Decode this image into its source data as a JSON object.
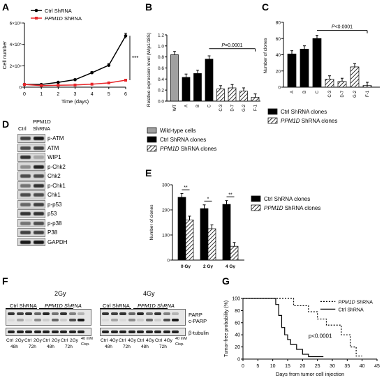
{
  "panels": {
    "A": "A",
    "B": "B",
    "C": "C",
    "D": "D",
    "E": "E",
    "F": "F",
    "G": "G"
  },
  "chart_data": [
    {
      "panel": "A",
      "type": "line",
      "xlabel": "Time (days)",
      "ylabel": "Cell number",
      "xlim": [
        0,
        6
      ],
      "ylim": [
        0,
        600000
      ],
      "x_ticks": [
        "0",
        "1",
        "2",
        "3",
        "4",
        "5",
        "6"
      ],
      "y_ticks": [
        "0",
        "2×10⁵",
        "4×10⁵",
        "6×10⁵"
      ],
      "x": [
        0,
        1,
        2,
        3,
        4,
        5,
        6
      ],
      "series": [
        {
          "name": "Ctrl ShRNA",
          "color": "#000000",
          "values": [
            25000,
            25000,
            45000,
            70000,
            135000,
            205000,
            480000
          ]
        },
        {
          "name": "PPM1D ShRNA",
          "color": "#e8262a",
          "values": [
            25000,
            15000,
            18000,
            20000,
            28000,
            40000,
            65000
          ]
        }
      ],
      "annotation": "***"
    },
    {
      "panel": "B",
      "type": "bar",
      "ylabel": "Relative expression level (Wip1/18S)",
      "ylim": [
        0,
        1.2
      ],
      "y_ticks": [
        "0.0",
        "0.2",
        "0.4",
        "0.6",
        "0.8",
        "1.0",
        "1.2"
      ],
      "categories": [
        "WT",
        "A",
        "B",
        "C",
        "C-3",
        "D-7",
        "G-2",
        "F-1"
      ],
      "values": [
        0.84,
        0.43,
        0.5,
        0.76,
        0.22,
        0.24,
        0.18,
        0.07
      ],
      "group": [
        "wt",
        "ctrl",
        "ctrl",
        "ctrl",
        "ppm",
        "ppm",
        "ppm",
        "ppm"
      ],
      "annotation": "P=0.0001",
      "legend": [
        "Wild-type cells",
        "Ctrl ShRNA clones",
        "PPM1D ShRNA clones"
      ]
    },
    {
      "panel": "C",
      "type": "bar",
      "ylabel": "Number of clones",
      "ylim": [
        0,
        80
      ],
      "y_ticks": [
        "0",
        "20",
        "40",
        "60",
        "80"
      ],
      "categories": [
        "A",
        "B",
        "C",
        "C-3",
        "D-7",
        "G-2",
        "F-1"
      ],
      "values": [
        41,
        47,
        60,
        10,
        7,
        25,
        2
      ],
      "group": [
        "ctrl",
        "ctrl",
        "ctrl",
        "ppm",
        "ppm",
        "ppm",
        "ppm"
      ],
      "annotation": "P<0.0001",
      "legend": [
        "Ctrl ShRNA clones",
        "PPM1D ShRNA clones"
      ]
    },
    {
      "panel": "E",
      "type": "bar",
      "ylabel": "Number of clones",
      "ylim": [
        0,
        300
      ],
      "y_ticks": [
        "0",
        "100",
        "200",
        "300"
      ],
      "categories": [
        "0 Gy",
        "2 Gy",
        "4 Gy"
      ],
      "series": [
        {
          "name": "Ctrl ShRNA clones",
          "values": [
            250,
            205,
            222
          ]
        },
        {
          "name": "PPM1D ShRNA clones",
          "values": [
            160,
            125,
            55
          ]
        }
      ],
      "annotations": [
        "**",
        "*",
        "**"
      ]
    },
    {
      "panel": "G",
      "type": "line",
      "xlabel": "Days from tumor cell injection",
      "ylabel": "Tumor-free probability (%)",
      "xlim": [
        0,
        45
      ],
      "ylim": [
        0,
        100
      ],
      "x_ticks": [
        "0",
        "5",
        "10",
        "15",
        "20",
        "25",
        "30",
        "35",
        "40",
        "45"
      ],
      "y_ticks": [
        "0",
        "20",
        "40",
        "60",
        "80",
        "100"
      ],
      "series": [
        {
          "name": "PPM1D ShRNA",
          "style": "dotted",
          "x": [
            0,
            17,
            17,
            22,
            22,
            25,
            25,
            28,
            28,
            33,
            33,
            36,
            36,
            38,
            38,
            40
          ],
          "values": [
            100,
            100,
            88,
            88,
            78,
            78,
            66,
            66,
            56,
            56,
            40,
            40,
            20,
            20,
            5,
            5
          ]
        },
        {
          "name": "Ctrl ShRNA",
          "style": "solid",
          "x": [
            0,
            11,
            11,
            12,
            12,
            13,
            13,
            14,
            14,
            15,
            15,
            16,
            16,
            18,
            18,
            20,
            20,
            22,
            22,
            27
          ],
          "values": [
            100,
            100,
            90,
            90,
            72,
            72,
            52,
            52,
            40,
            40,
            32,
            32,
            24,
            24,
            16,
            16,
            8,
            8,
            4,
            4
          ]
        }
      ],
      "annotation": "p<0.0001"
    }
  ],
  "panelD": {
    "header": [
      "Ctrl",
      "PPM1D",
      "ShRNA"
    ],
    "bands": [
      "p-ATM",
      "ATM",
      "WIP1",
      "p-Chk2",
      "Chk2",
      "p-Chk1",
      "Chk1",
      "p-p53",
      "p53",
      "p-p38",
      "P38",
      "GAPDH"
    ]
  },
  "panelF": {
    "left_title": "2Gy",
    "right_title": "4Gy",
    "group_ctrl": "Ctrl ShRNA",
    "group_ppm": "PPM1D ShRNA",
    "right_labels": [
      "PARP",
      "c-PARP",
      "β-tubulin"
    ],
    "lanes_left": [
      "Ctrl",
      "2Gy",
      "Ctrl",
      "2Gy",
      "Ctrl",
      "2Gy",
      "Ctrl",
      "2Gy"
    ],
    "lanes_right": [
      "Ctrl",
      "4Gy",
      "Ctrl",
      "4Gy",
      "Ctrl",
      "4Gy",
      "Ctrl",
      "4Gy"
    ],
    "times": [
      "48h",
      "72h",
      "48h",
      "72h"
    ],
    "cisp": [
      "40 mM",
      "Cisp."
    ]
  }
}
